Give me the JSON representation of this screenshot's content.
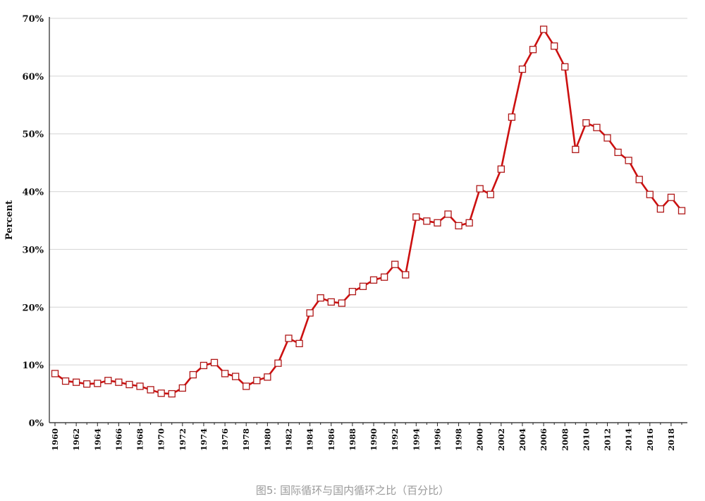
{
  "caption": "图5: 国际循环与国内循环之比（百分比）",
  "chart_data": {
    "type": "line",
    "ylabel": "Percent",
    "ylim": [
      0,
      70
    ],
    "yticks": [
      "0%",
      "10%",
      "20%",
      "30%",
      "40%",
      "50%",
      "60%",
      "70%"
    ],
    "xlim": [
      1960,
      2019
    ],
    "xticks": [
      "1960",
      "1962",
      "1964",
      "1966",
      "1968",
      "1970",
      "1972",
      "1974",
      "1976",
      "1978",
      "1980",
      "1982",
      "1984",
      "1986",
      "1988",
      "1990",
      "1992",
      "1994",
      "1996",
      "1998",
      "2000",
      "2002",
      "2004",
      "2006",
      "2008",
      "2010",
      "2012",
      "2014",
      "2016",
      "2018"
    ],
    "grid": "horizontal",
    "series": [
      {
        "line_color": "#cc1010",
        "marker": "square",
        "x": [
          1960,
          1961,
          1962,
          1963,
          1964,
          1965,
          1966,
          1967,
          1968,
          1969,
          1970,
          1971,
          1972,
          1973,
          1974,
          1975,
          1976,
          1977,
          1978,
          1979,
          1980,
          1981,
          1982,
          1983,
          1984,
          1985,
          1986,
          1987,
          1988,
          1989,
          1990,
          1991,
          1992,
          1993,
          1994,
          1995,
          1996,
          1997,
          1998,
          1999,
          2000,
          2001,
          2002,
          2003,
          2004,
          2005,
          2006,
          2007,
          2008,
          2009,
          2010,
          2011,
          2012,
          2013,
          2014,
          2015,
          2016,
          2017,
          2018,
          2019
        ],
        "values": [
          8.5,
          7.2,
          7.0,
          6.7,
          6.8,
          7.3,
          7.0,
          6.6,
          6.3,
          5.7,
          5.1,
          5.0,
          6.0,
          8.3,
          9.9,
          10.4,
          8.5,
          8.0,
          6.3,
          7.3,
          7.9,
          10.3,
          14.6,
          13.7,
          19.0,
          21.6,
          20.9,
          20.7,
          22.7,
          23.6,
          24.7,
          25.2,
          27.4,
          25.6,
          35.6,
          34.9,
          34.6,
          36.1,
          34.1,
          34.6,
          40.5,
          39.5,
          43.9,
          52.9,
          61.2,
          64.6,
          68.1,
          65.2,
          61.6,
          47.3,
          51.9,
          51.1,
          49.3,
          46.8,
          45.4,
          42.1,
          39.5,
          37.0,
          39.0,
          36.7
        ]
      }
    ]
  }
}
